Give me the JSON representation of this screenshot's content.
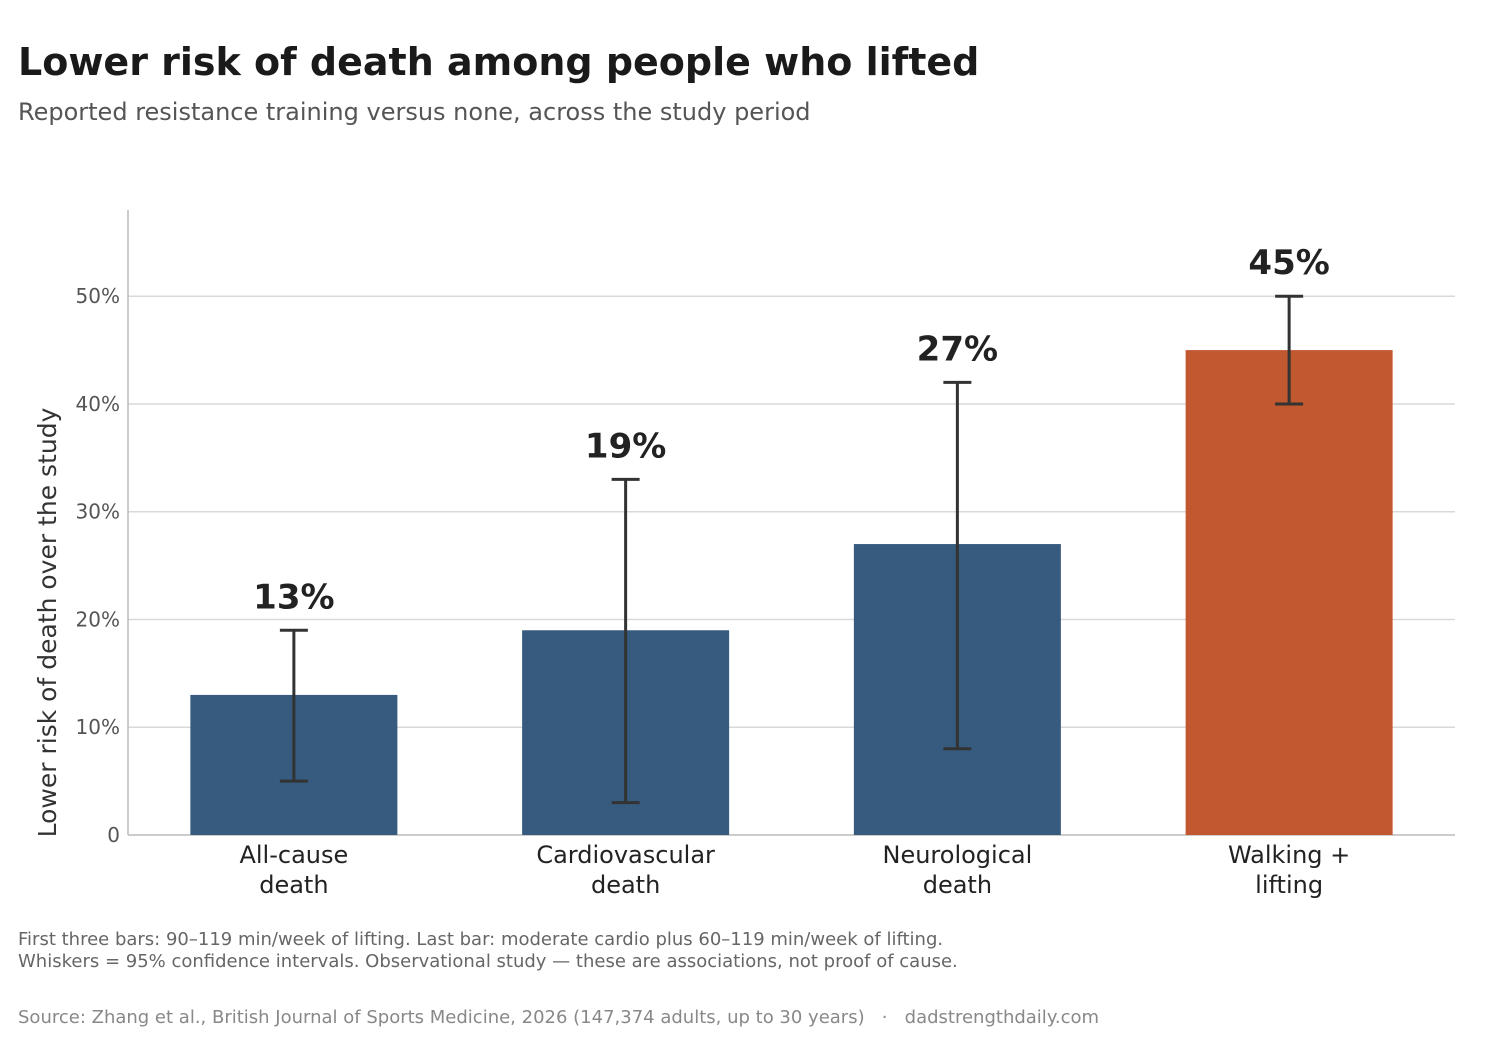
{
  "header": {
    "title": "Lower risk of death among people who lifted",
    "subtitle": "Reported resistance training versus none, across the study period"
  },
  "footer": {
    "note_line1": "First three bars: 90–119 min/week of lifting.   Last bar: moderate cardio plus 60–119 min/week of lifting.",
    "note_line2": "Whiskers = 95% confidence intervals.   Observational study — these are associations, not proof of cause.",
    "source": "Source: Zhang et al., British Journal of Sports Medicine, 2026 (147,374 adults, up to 30 years)   ·   dadstrengthdaily.com"
  },
  "chart_data": {
    "type": "bar",
    "title": "Lower risk of death among people who lifted",
    "subtitle": "Reported resistance training versus none, across the study period",
    "ylabel": "Lower risk of death over the study",
    "xlabel": "",
    "ylim": [
      0,
      58
    ],
    "yticks": [
      0,
      10,
      20,
      30,
      40,
      50
    ],
    "ytick_labels": [
      "0",
      "10%",
      "20%",
      "30%",
      "40%",
      "50%"
    ],
    "grid": "horizontal",
    "legend": "none",
    "categories": [
      [
        "All-cause",
        "death"
      ],
      [
        "Cardiovascular",
        "death"
      ],
      [
        "Neurological",
        "death"
      ],
      [
        "Walking +",
        "lifting"
      ]
    ],
    "values": [
      13,
      19,
      27,
      45
    ],
    "value_labels": [
      "13%",
      "19%",
      "27%",
      "45%"
    ],
    "ci_low": [
      5,
      3,
      8,
      40
    ],
    "ci_high": [
      19,
      33,
      42,
      50
    ],
    "colors": [
      "#375a7f",
      "#375a7f",
      "#375a7f",
      "#c2582f"
    ]
  }
}
